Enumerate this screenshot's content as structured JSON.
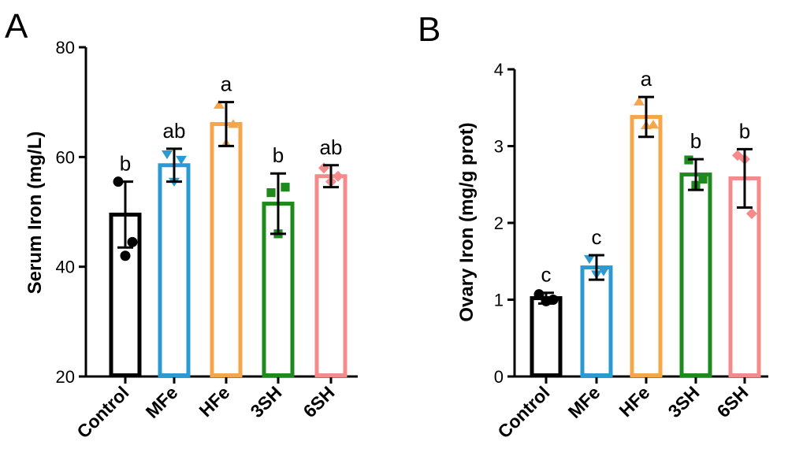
{
  "chart_data": [
    {
      "type": "bar",
      "panel": "A",
      "title": "",
      "xlabel": "",
      "ylabel": "Serum Iron (mg/L)",
      "ylim": [
        20,
        80
      ],
      "yticks": [
        20,
        40,
        60,
        80
      ],
      "categories": [
        "Control",
        "MFe",
        "HFe",
        "3SH",
        "6SH"
      ],
      "values": [
        49.5,
        58.5,
        66,
        51.5,
        56.5
      ],
      "errors": [
        6,
        3,
        4,
        5.5,
        2
      ],
      "significance": [
        "b",
        "ab",
        "a",
        "b",
        "ab"
      ],
      "points": [
        [
          55.5,
          42,
          44.5
        ],
        [
          60.5,
          55.5,
          59.5
        ],
        [
          69.5,
          62.5,
          66
        ],
        [
          53.5,
          46,
          54.5
        ],
        [
          58,
          55.5,
          56.5
        ]
      ],
      "markers": [
        "circle",
        "triangle-down",
        "triangle-up",
        "square",
        "diamond"
      ],
      "colors": [
        "#000000",
        "#2c9ad2",
        "#f5a54a",
        "#1e8a1e",
        "#f58a8a"
      ]
    },
    {
      "type": "bar",
      "panel": "B",
      "title": "",
      "xlabel": "",
      "ylabel": "Ovary Iron (mg/g prot)",
      "ylim": [
        0,
        4
      ],
      "yticks": [
        0,
        1,
        2,
        3,
        4
      ],
      "categories": [
        "Control",
        "MFe",
        "HFe",
        "3SH",
        "6SH"
      ],
      "values": [
        1.02,
        1.42,
        3.38,
        2.63,
        2.58
      ],
      "errors": [
        0.07,
        0.16,
        0.26,
        0.2,
        0.38
      ],
      "significance": [
        "c",
        "c",
        "a",
        "b",
        "b"
      ],
      "points": [
        [
          1.07,
          0.98,
          1.0
        ],
        [
          1.53,
          1.33,
          1.37
        ],
        [
          3.58,
          3.27,
          3.28
        ],
        [
          2.82,
          2.49,
          2.57
        ],
        [
          2.88,
          2.83,
          2.12
        ]
      ],
      "markers": [
        "circle",
        "triangle-down",
        "triangle-up",
        "square",
        "diamond"
      ],
      "colors": [
        "#000000",
        "#2c9ad2",
        "#f5a54a",
        "#1e8a1e",
        "#f58a8a"
      ]
    }
  ]
}
